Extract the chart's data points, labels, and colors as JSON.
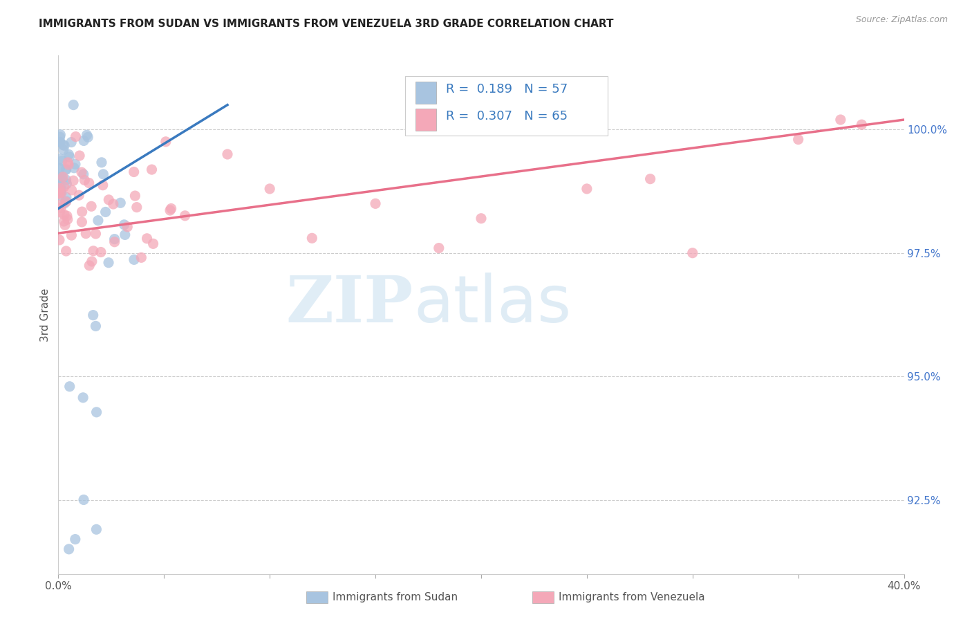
{
  "title": "IMMIGRANTS FROM SUDAN VS IMMIGRANTS FROM VENEZUELA 3RD GRADE CORRELATION CHART",
  "source": "Source: ZipAtlas.com",
  "ylabel": "3rd Grade",
  "yticks": [
    92.5,
    95.0,
    97.5,
    100.0
  ],
  "ytick_labels": [
    "92.5%",
    "95.0%",
    "97.5%",
    "100.0%"
  ],
  "xmin": 0.0,
  "xmax": 40.0,
  "ymin": 91.0,
  "ymax": 101.5,
  "sudan_R": 0.189,
  "sudan_N": 57,
  "venezuela_R": 0.307,
  "venezuela_N": 65,
  "sudan_color": "#a8c4e0",
  "venezuela_color": "#f4a8b8",
  "sudan_line_color": "#3a7abf",
  "venezuela_line_color": "#e8708a",
  "legend_label_sudan": "Immigrants from Sudan",
  "legend_label_venezuela": "Immigrants from Venezuela",
  "watermark_zip": "ZIP",
  "watermark_atlas": "atlas",
  "background_color": "#ffffff",
  "grid_color": "#cccccc",
  "sudan_seed": 42,
  "venezuela_seed": 77
}
